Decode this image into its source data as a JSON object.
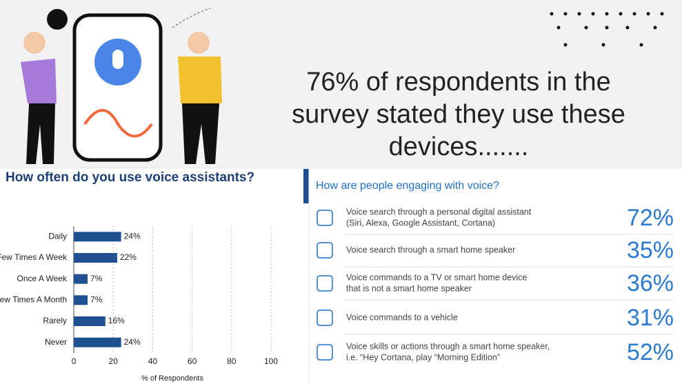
{
  "headline": [
    "76% of respondents in the",
    "survey stated they use these",
    "devices......."
  ],
  "chart_data": {
    "type": "bar",
    "orientation": "horizontal",
    "title": "How often do you use voice assistants?",
    "categories": [
      "Daily",
      "A Few Times A Week",
      "Once A Week",
      "A Few Times A Month",
      "Rarely",
      "Never"
    ],
    "values": [
      24,
      22,
      7,
      7,
      16,
      24
    ],
    "value_labels": [
      "24%",
      "22%",
      "7%",
      "7%",
      "16%",
      "24%"
    ],
    "color": "#1d4f91",
    "xlim": [
      0,
      100
    ],
    "xticks": [
      0,
      20,
      40,
      60,
      80,
      100
    ],
    "xlabel": "% of Respondents",
    "grid": true
  },
  "engagement": {
    "title": "How are people engaging with voice?",
    "rows": [
      {
        "text": [
          "Voice search through a personal digital assistant",
          "(Siri, Alexa, Google Assistant, Cortana)"
        ],
        "percent": "72%"
      },
      {
        "text": [
          "Voice search through a smart home speaker"
        ],
        "percent": "35%"
      },
      {
        "text": [
          "Voice commands to a TV or smart home device",
          "that is not a smart home speaker"
        ],
        "percent": "36%"
      },
      {
        "text": [
          "Voice commands to a vehicle"
        ],
        "percent": "31%"
      },
      {
        "text": [
          "Voice skills or actions through a smart home speaker,",
          "i.e. “Hey Cortana, play “Morning Edition”"
        ],
        "percent": "52%"
      }
    ]
  }
}
